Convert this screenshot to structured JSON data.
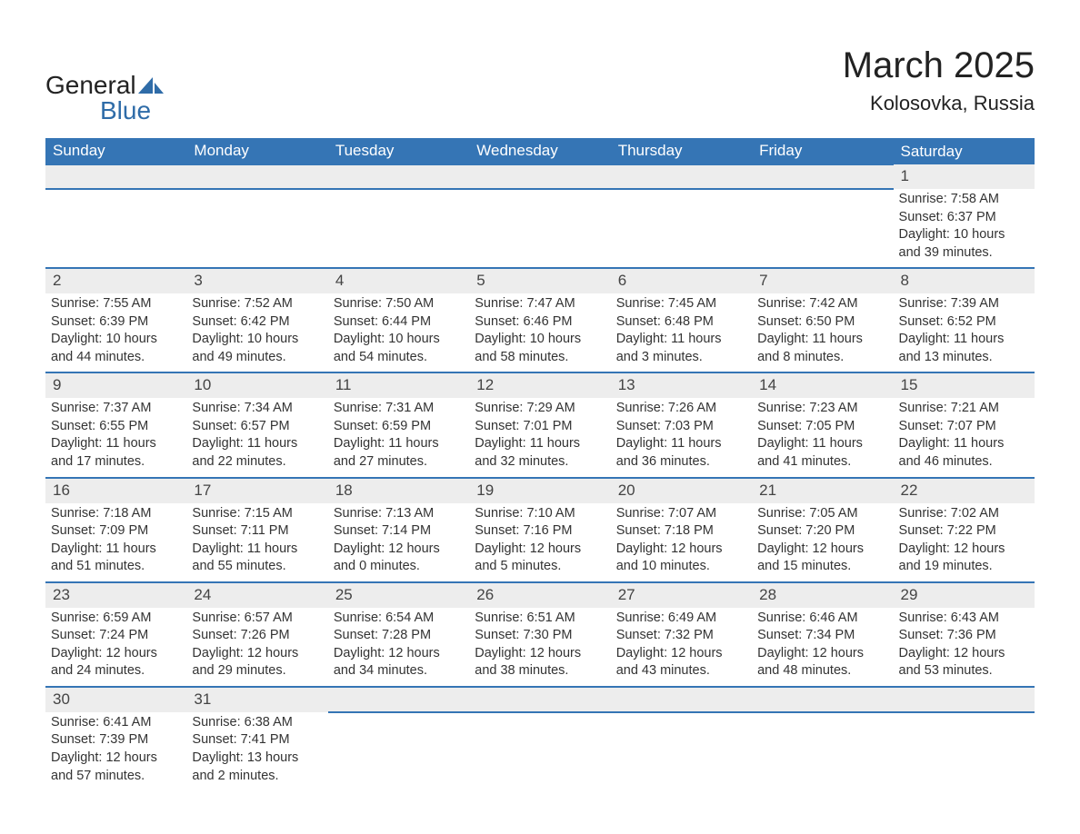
{
  "brand": {
    "name_a": "General",
    "name_b": "Blue"
  },
  "title": "March 2025",
  "location": "Kolosovka, Russia",
  "colors": {
    "header_bg": "#3575b5",
    "header_text": "#ffffff",
    "row_stripe": "#ededed",
    "border": "#3575b5",
    "text": "#333333",
    "brand_blue": "#2f6ca8"
  },
  "weekdays": [
    "Sunday",
    "Monday",
    "Tuesday",
    "Wednesday",
    "Thursday",
    "Friday",
    "Saturday"
  ],
  "weeks": [
    [
      null,
      null,
      null,
      null,
      null,
      null,
      {
        "n": "1",
        "sr": "Sunrise: 7:58 AM",
        "ss": "Sunset: 6:37 PM",
        "d1": "Daylight: 10 hours",
        "d2": "and 39 minutes."
      }
    ],
    [
      {
        "n": "2",
        "sr": "Sunrise: 7:55 AM",
        "ss": "Sunset: 6:39 PM",
        "d1": "Daylight: 10 hours",
        "d2": "and 44 minutes."
      },
      {
        "n": "3",
        "sr": "Sunrise: 7:52 AM",
        "ss": "Sunset: 6:42 PM",
        "d1": "Daylight: 10 hours",
        "d2": "and 49 minutes."
      },
      {
        "n": "4",
        "sr": "Sunrise: 7:50 AM",
        "ss": "Sunset: 6:44 PM",
        "d1": "Daylight: 10 hours",
        "d2": "and 54 minutes."
      },
      {
        "n": "5",
        "sr": "Sunrise: 7:47 AM",
        "ss": "Sunset: 6:46 PM",
        "d1": "Daylight: 10 hours",
        "d2": "and 58 minutes."
      },
      {
        "n": "6",
        "sr": "Sunrise: 7:45 AM",
        "ss": "Sunset: 6:48 PM",
        "d1": "Daylight: 11 hours",
        "d2": "and 3 minutes."
      },
      {
        "n": "7",
        "sr": "Sunrise: 7:42 AM",
        "ss": "Sunset: 6:50 PM",
        "d1": "Daylight: 11 hours",
        "d2": "and 8 minutes."
      },
      {
        "n": "8",
        "sr": "Sunrise: 7:39 AM",
        "ss": "Sunset: 6:52 PM",
        "d1": "Daylight: 11 hours",
        "d2": "and 13 minutes."
      }
    ],
    [
      {
        "n": "9",
        "sr": "Sunrise: 7:37 AM",
        "ss": "Sunset: 6:55 PM",
        "d1": "Daylight: 11 hours",
        "d2": "and 17 minutes."
      },
      {
        "n": "10",
        "sr": "Sunrise: 7:34 AM",
        "ss": "Sunset: 6:57 PM",
        "d1": "Daylight: 11 hours",
        "d2": "and 22 minutes."
      },
      {
        "n": "11",
        "sr": "Sunrise: 7:31 AM",
        "ss": "Sunset: 6:59 PM",
        "d1": "Daylight: 11 hours",
        "d2": "and 27 minutes."
      },
      {
        "n": "12",
        "sr": "Sunrise: 7:29 AM",
        "ss": "Sunset: 7:01 PM",
        "d1": "Daylight: 11 hours",
        "d2": "and 32 minutes."
      },
      {
        "n": "13",
        "sr": "Sunrise: 7:26 AM",
        "ss": "Sunset: 7:03 PM",
        "d1": "Daylight: 11 hours",
        "d2": "and 36 minutes."
      },
      {
        "n": "14",
        "sr": "Sunrise: 7:23 AM",
        "ss": "Sunset: 7:05 PM",
        "d1": "Daylight: 11 hours",
        "d2": "and 41 minutes."
      },
      {
        "n": "15",
        "sr": "Sunrise: 7:21 AM",
        "ss": "Sunset: 7:07 PM",
        "d1": "Daylight: 11 hours",
        "d2": "and 46 minutes."
      }
    ],
    [
      {
        "n": "16",
        "sr": "Sunrise: 7:18 AM",
        "ss": "Sunset: 7:09 PM",
        "d1": "Daylight: 11 hours",
        "d2": "and 51 minutes."
      },
      {
        "n": "17",
        "sr": "Sunrise: 7:15 AM",
        "ss": "Sunset: 7:11 PM",
        "d1": "Daylight: 11 hours",
        "d2": "and 55 minutes."
      },
      {
        "n": "18",
        "sr": "Sunrise: 7:13 AM",
        "ss": "Sunset: 7:14 PM",
        "d1": "Daylight: 12 hours",
        "d2": "and 0 minutes."
      },
      {
        "n": "19",
        "sr": "Sunrise: 7:10 AM",
        "ss": "Sunset: 7:16 PM",
        "d1": "Daylight: 12 hours",
        "d2": "and 5 minutes."
      },
      {
        "n": "20",
        "sr": "Sunrise: 7:07 AM",
        "ss": "Sunset: 7:18 PM",
        "d1": "Daylight: 12 hours",
        "d2": "and 10 minutes."
      },
      {
        "n": "21",
        "sr": "Sunrise: 7:05 AM",
        "ss": "Sunset: 7:20 PM",
        "d1": "Daylight: 12 hours",
        "d2": "and 15 minutes."
      },
      {
        "n": "22",
        "sr": "Sunrise: 7:02 AM",
        "ss": "Sunset: 7:22 PM",
        "d1": "Daylight: 12 hours",
        "d2": "and 19 minutes."
      }
    ],
    [
      {
        "n": "23",
        "sr": "Sunrise: 6:59 AM",
        "ss": "Sunset: 7:24 PM",
        "d1": "Daylight: 12 hours",
        "d2": "and 24 minutes."
      },
      {
        "n": "24",
        "sr": "Sunrise: 6:57 AM",
        "ss": "Sunset: 7:26 PM",
        "d1": "Daylight: 12 hours",
        "d2": "and 29 minutes."
      },
      {
        "n": "25",
        "sr": "Sunrise: 6:54 AM",
        "ss": "Sunset: 7:28 PM",
        "d1": "Daylight: 12 hours",
        "d2": "and 34 minutes."
      },
      {
        "n": "26",
        "sr": "Sunrise: 6:51 AM",
        "ss": "Sunset: 7:30 PM",
        "d1": "Daylight: 12 hours",
        "d2": "and 38 minutes."
      },
      {
        "n": "27",
        "sr": "Sunrise: 6:49 AM",
        "ss": "Sunset: 7:32 PM",
        "d1": "Daylight: 12 hours",
        "d2": "and 43 minutes."
      },
      {
        "n": "28",
        "sr": "Sunrise: 6:46 AM",
        "ss": "Sunset: 7:34 PM",
        "d1": "Daylight: 12 hours",
        "d2": "and 48 minutes."
      },
      {
        "n": "29",
        "sr": "Sunrise: 6:43 AM",
        "ss": "Sunset: 7:36 PM",
        "d1": "Daylight: 12 hours",
        "d2": "and 53 minutes."
      }
    ],
    [
      {
        "n": "30",
        "sr": "Sunrise: 6:41 AM",
        "ss": "Sunset: 7:39 PM",
        "d1": "Daylight: 12 hours",
        "d2": "and 57 minutes."
      },
      {
        "n": "31",
        "sr": "Sunrise: 6:38 AM",
        "ss": "Sunset: 7:41 PM",
        "d1": "Daylight: 13 hours",
        "d2": "and 2 minutes."
      },
      null,
      null,
      null,
      null,
      null
    ]
  ]
}
